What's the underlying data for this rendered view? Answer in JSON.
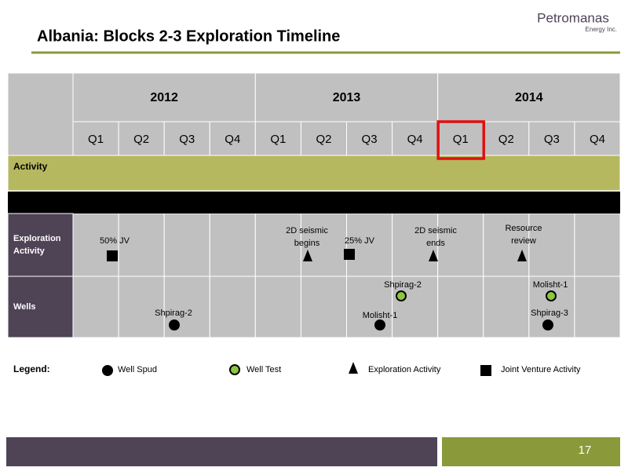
{
  "header": {
    "title": "Albania: Blocks 2-3 Exploration Timeline",
    "logo_name": "Petromanas",
    "logo_sub": "Energy Inc."
  },
  "table": {
    "years": [
      "2012",
      "2013",
      "2014"
    ],
    "quarters": [
      "Q1",
      "Q2",
      "Q3",
      "Q4",
      "Q1",
      "Q2",
      "Q3",
      "Q4",
      "Q1",
      "Q2",
      "Q3",
      "Q4"
    ],
    "activity_label": "Activity",
    "rows": [
      {
        "label": [
          "Exploration",
          "Activity"
        ]
      },
      {
        "label": [
          "Wells"
        ]
      }
    ]
  },
  "events": {
    "exploration": [
      {
        "label": [
          "50% JV"
        ]
      },
      {
        "label": [
          "2D seismic",
          "begins"
        ]
      },
      {
        "label": [
          "25% JV"
        ]
      },
      {
        "label": [
          "2D seismic",
          "ends"
        ]
      },
      {
        "label": [
          "Resource",
          "review"
        ]
      }
    ],
    "wells": [
      {
        "label": "Shpirag-2"
      },
      {
        "label": "Shpirag-2"
      },
      {
        "label": "Molisht-1"
      },
      {
        "label": "Molisht-1"
      },
      {
        "label": "Shpirag-3"
      }
    ]
  },
  "legend": {
    "label": "Legend:",
    "items": [
      "Well Spud",
      "Well Test",
      "Exploration Activity",
      "Joint Venture Activity"
    ]
  },
  "footer": {
    "page": "17"
  }
}
